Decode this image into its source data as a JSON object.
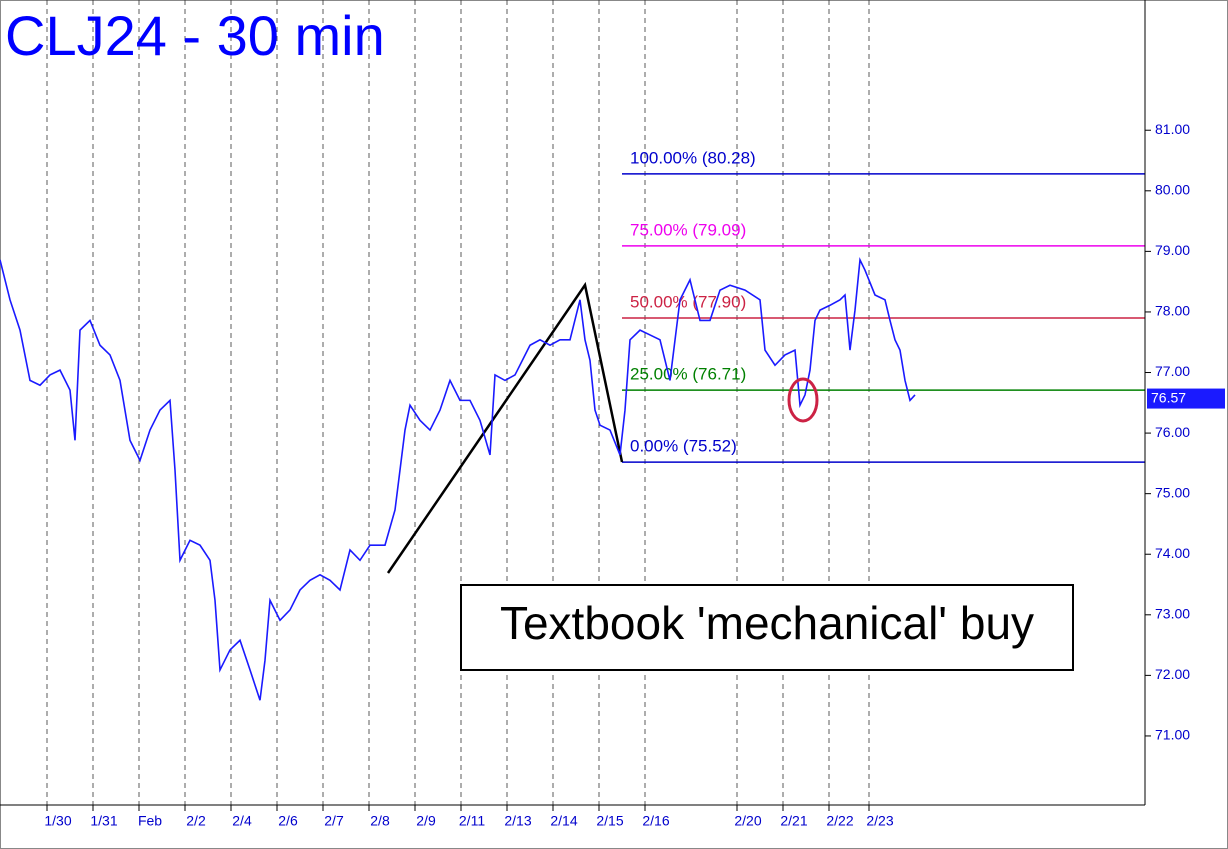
{
  "chart_data": {
    "type": "line",
    "title": "CLJ24 - 30 min",
    "annotation": "Textbook 'mechanical' buy",
    "x": [
      0,
      2,
      4,
      6,
      8,
      10,
      12,
      14,
      15,
      16,
      18,
      20,
      22,
      24,
      26,
      28,
      30,
      32,
      34,
      35,
      36,
      38,
      40,
      42,
      43,
      44,
      46,
      48,
      50,
      52,
      53,
      54,
      56,
      58,
      60,
      62,
      64,
      66,
      68,
      70,
      72,
      74,
      77,
      79,
      81,
      82,
      84,
      86,
      88,
      90,
      92,
      94,
      96,
      98,
      99,
      101,
      103,
      106,
      108,
      110,
      112,
      114,
      116,
      117,
      118,
      119,
      120,
      122,
      124,
      125,
      126,
      128,
      130,
      132,
      134,
      136,
      138,
      140,
      142,
      144,
      146,
      149,
      152,
      153,
      155,
      157,
      159,
      160,
      161,
      162,
      163,
      164,
      166,
      168,
      169,
      170,
      171,
      172,
      173,
      175,
      177,
      178,
      179,
      180,
      181,
      182,
      183
    ],
    "series": [
      {
        "name": "CLJ24",
        "color": "#1a1aff",
        "values": [
          78.86,
          78.2,
          77.7,
          76.87,
          76.79,
          76.96,
          77.04,
          76.71,
          75.88,
          77.7,
          77.86,
          77.45,
          77.29,
          76.87,
          75.88,
          75.55,
          76.05,
          76.38,
          76.54,
          75.39,
          73.9,
          74.23,
          74.15,
          73.9,
          73.24,
          72.09,
          72.42,
          72.58,
          72.09,
          71.59,
          72.25,
          73.24,
          72.91,
          73.08,
          73.41,
          73.57,
          73.66,
          73.57,
          73.41,
          74.07,
          73.9,
          74.15,
          74.15,
          74.73,
          76.05,
          76.46,
          76.21,
          76.05,
          76.38,
          76.87,
          76.54,
          76.54,
          76.21,
          75.64,
          76.96,
          76.87,
          76.96,
          77.45,
          77.54,
          77.45,
          77.54,
          77.54,
          78.2,
          77.54,
          77.2,
          76.38,
          76.13,
          76.05,
          75.64,
          76.38,
          77.54,
          77.7,
          77.62,
          77.54,
          76.87,
          78.2,
          78.53,
          77.86,
          77.86,
          78.36,
          78.44,
          78.36,
          78.2,
          77.37,
          77.12,
          77.29,
          77.37,
          76.46,
          76.63,
          77.04,
          77.86,
          78.03,
          78.11,
          78.2,
          78.28,
          77.37,
          78.03,
          78.86,
          78.69,
          78.28,
          78.2,
          77.86,
          77.54,
          77.37,
          76.87,
          76.54,
          76.63
        ]
      }
    ],
    "last_value": {
      "value": 76.57,
      "label": "76.57"
    },
    "levels": [
      {
        "label": "100.00% (80.28)",
        "value": 80.28,
        "color": "#0000cc"
      },
      {
        "label": "75.00% (79.09)",
        "value": 79.09,
        "color": "#ee00ee"
      },
      {
        "label": "50.00% (77.90)",
        "value": 77.9,
        "color": "#cc2244"
      },
      {
        "label": "25.00% (76.71)",
        "value": 76.71,
        "color": "#008000"
      },
      {
        "label": "0.00% (75.52)",
        "value": 75.52,
        "color": "#0000cc"
      }
    ],
    "xlim": [
      0,
      229
    ],
    "ylim": [
      69.86,
      83.15
    ],
    "xticks": [
      {
        "value": 9.4,
        "label": "1/30"
      },
      {
        "value": 18.6,
        "label": "1/31"
      },
      {
        "value": 27.8,
        "label": "Feb"
      },
      {
        "value": 37,
        "label": "2/2"
      },
      {
        "value": 46.2,
        "label": "2/4"
      },
      {
        "value": 55.4,
        "label": "2/6"
      },
      {
        "value": 64.6,
        "label": "2/7"
      },
      {
        "value": 73.8,
        "label": "2/8"
      },
      {
        "value": 83,
        "label": "2/9"
      },
      {
        "value": 92.2,
        "label": "2/11"
      },
      {
        "value": 101.4,
        "label": "2/13"
      },
      {
        "value": 110.6,
        "label": "2/14"
      },
      {
        "value": 119.8,
        "label": "2/15"
      },
      {
        "value": 129,
        "label": "2/16"
      },
      {
        "value": 147.4,
        "label": "2/20"
      },
      {
        "value": 156.6,
        "label": "2/21"
      },
      {
        "value": 165.8,
        "label": "2/22"
      },
      {
        "value": 173.8,
        "label": "2/23"
      }
    ],
    "yticks": [
      {
        "value": 71,
        "label": "71.00"
      },
      {
        "value": 72,
        "label": "72.00"
      },
      {
        "value": 73,
        "label": "73.00"
      },
      {
        "value": 74,
        "label": "74.00"
      },
      {
        "value": 75,
        "label": "75.00"
      },
      {
        "value": 76,
        "label": "76.00"
      },
      {
        "value": 77,
        "label": "77.00"
      },
      {
        "value": 78,
        "label": "78.00"
      },
      {
        "value": 79,
        "label": "79.00"
      },
      {
        "value": 80,
        "label": "80.00"
      },
      {
        "value": 81,
        "label": "81.00"
      }
    ],
    "grid": true
  }
}
